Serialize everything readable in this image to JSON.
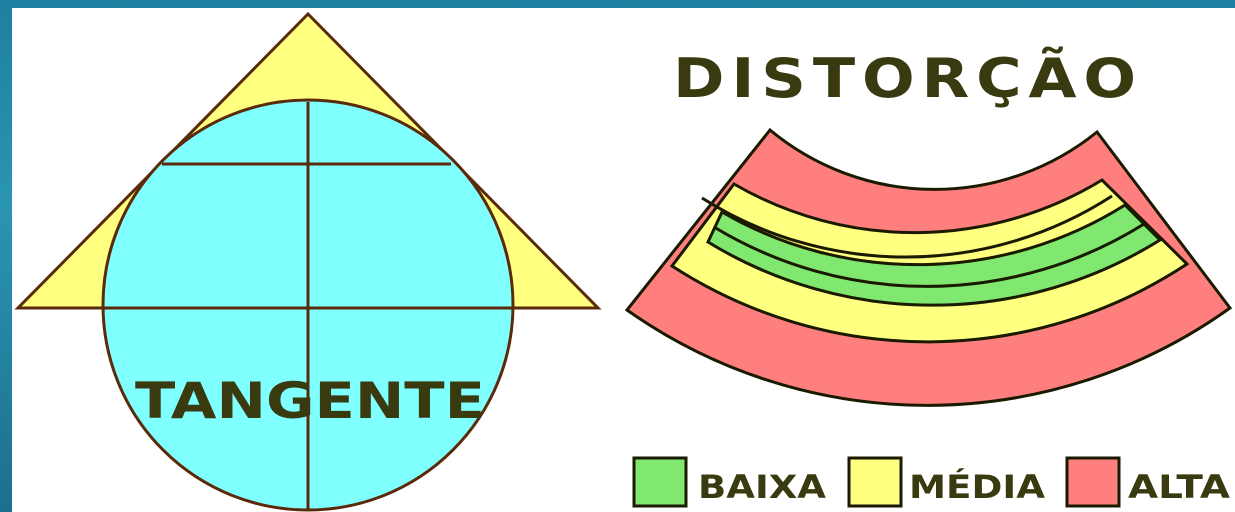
{
  "left_figure": {
    "label": "TANGENTE",
    "colors": {
      "cone": "#ffff80",
      "globe": "#80ffff",
      "stroke": "#5a2a0a",
      "text": "#3a3a10"
    }
  },
  "right_figure": {
    "title": "DISTORÇÃO",
    "bands_inner_to_outer": [
      "green",
      "yellow",
      "red"
    ],
    "colors": {
      "low": "#80e870",
      "medium": "#ffff80",
      "high": "#ff7f7f",
      "stroke": "#1a1a00"
    }
  },
  "legend": {
    "items": [
      {
        "label": "BAIXA",
        "color": "#80e870"
      },
      {
        "label": "MÉDIA",
        "color": "#ffff80"
      },
      {
        "label": "ALTA",
        "color": "#ff7f7f"
      }
    ]
  }
}
